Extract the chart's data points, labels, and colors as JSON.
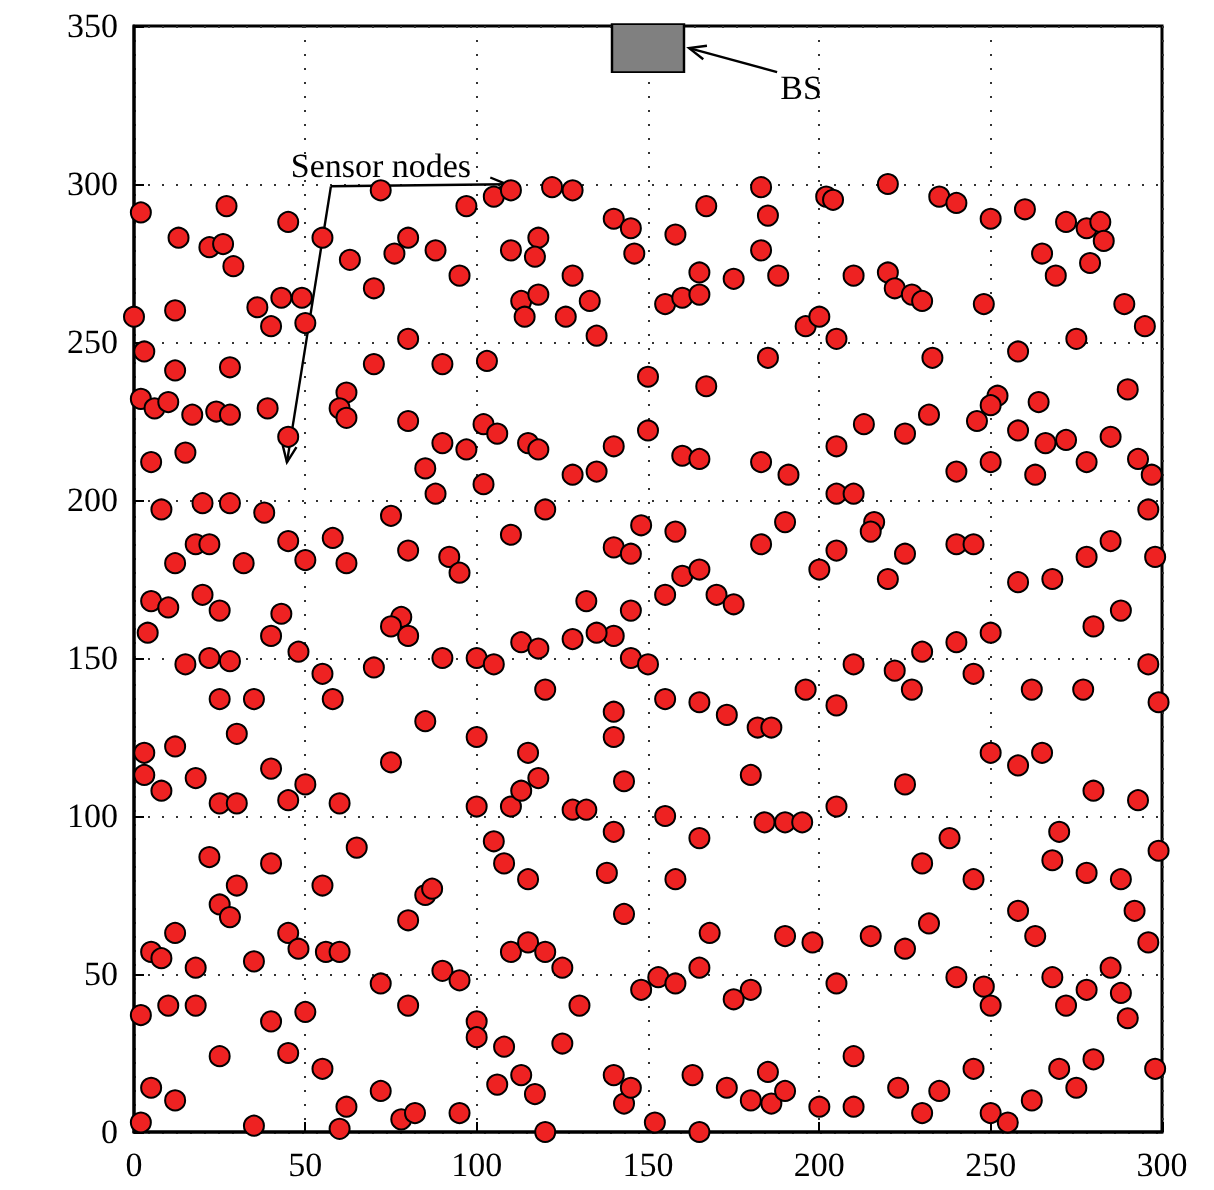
{
  "chart_data": {
    "type": "scatter",
    "xlim": [
      0,
      300
    ],
    "ylim": [
      0,
      350
    ],
    "xticks": [
      0,
      50,
      100,
      150,
      200,
      250,
      300
    ],
    "yticks": [
      0,
      50,
      100,
      150,
      200,
      250,
      300,
      350
    ],
    "grid": true,
    "marker": "circle",
    "annotations": [
      {
        "text": "Sensor nodes",
        "x": 110,
        "y": 298
      },
      {
        "text": "BS",
        "x": 162,
        "y": 343
      }
    ],
    "series": [
      {
        "color": "#ee2222",
        "x": [
          2,
          27,
          45,
          55,
          72,
          80,
          97,
          105,
          110,
          122,
          128,
          140,
          145,
          158,
          167,
          183,
          185,
          202,
          204,
          220,
          235,
          240,
          250,
          260,
          272,
          278,
          282,
          13,
          22,
          118,
          0,
          12,
          26,
          29,
          36,
          43,
          49,
          63,
          70,
          76,
          88,
          95,
          110,
          117,
          128,
          133,
          146,
          155,
          165,
          175,
          183,
          188,
          210,
          220,
          222,
          227,
          230,
          248,
          265,
          269,
          279,
          283,
          289,
          295,
          113,
          118,
          126,
          160,
          165,
          196,
          200,
          3,
          12,
          28,
          40,
          50,
          62,
          70,
          80,
          90,
          103,
          114,
          135,
          150,
          167,
          185,
          205,
          233,
          258,
          275,
          264,
          252,
          290,
          2,
          6,
          10,
          17,
          24,
          28,
          39,
          45,
          60,
          62,
          80,
          90,
          97,
          102,
          106,
          115,
          118,
          128,
          135,
          140,
          150,
          160,
          165,
          183,
          191,
          205,
          213,
          225,
          232,
          246,
          250,
          258,
          266,
          272,
          278,
          285,
          293,
          297,
          5,
          15,
          20,
          85,
          88,
          102,
          205,
          210,
          216,
          240,
          250,
          263,
          8,
          18,
          28,
          22,
          32,
          38,
          45,
          50,
          58,
          62,
          75,
          80,
          92,
          110,
          120,
          140,
          145,
          148,
          158,
          160,
          165,
          170,
          175,
          183,
          190,
          205,
          215,
          225,
          240,
          245,
          258,
          268,
          278,
          285,
          296,
          5,
          10,
          20,
          25,
          12,
          43,
          78,
          95,
          132,
          145,
          140,
          155,
          200,
          220,
          250,
          280,
          288,
          298,
          4,
          15,
          22,
          28,
          40,
          48,
          55,
          58,
          70,
          75,
          80,
          90,
          100,
          105,
          113,
          118,
          128,
          135,
          145,
          150,
          155,
          165,
          173,
          182,
          186,
          196,
          205,
          210,
          222,
          227,
          230,
          240,
          245,
          262,
          277,
          296,
          299,
          3,
          12,
          30,
          35,
          25,
          85,
          100,
          115,
          140,
          140,
          120,
          250,
          265,
          3,
          8,
          18,
          25,
          30,
          40,
          45,
          50,
          60,
          75,
          100,
          110,
          113,
          118,
          128,
          132,
          143,
          165,
          180,
          184,
          190,
          205,
          225,
          238,
          258,
          270,
          280,
          293,
          299,
          22,
          30,
          40,
          55,
          65,
          85,
          87,
          105,
          108,
          115,
          138,
          140,
          155,
          158,
          195,
          230,
          245,
          268,
          278,
          288,
          5,
          8,
          12,
          18,
          25,
          28,
          35,
          45,
          48,
          56,
          60,
          72,
          80,
          90,
          95,
          110,
          115,
          120,
          125,
          143,
          148,
          153,
          158,
          165,
          168,
          180,
          190,
          198,
          205,
          215,
          225,
          232,
          240,
          248,
          258,
          263,
          268,
          278,
          285,
          292,
          296,
          2,
          10,
          18,
          40,
          50,
          80,
          100,
          130,
          175,
          250,
          272,
          288,
          2,
          5,
          12,
          25,
          35,
          45,
          55,
          62,
          72,
          78,
          82,
          95,
          106,
          108,
          113,
          117,
          125,
          140,
          143,
          145,
          163,
          173,
          180,
          186,
          190,
          200,
          210,
          223,
          230,
          235,
          245,
          250,
          262,
          270,
          275,
          280,
          290,
          298,
          165,
          120,
          60,
          100,
          210,
          255,
          152,
          185
        ],
        "values": [
          291,
          293,
          288,
          283,
          298,
          283,
          293,
          296,
          298,
          299,
          298,
          289,
          286,
          284,
          293,
          299,
          290,
          296,
          295,
          300,
          296,
          294,
          289,
          292,
          288,
          286,
          288,
          283,
          280,
          283,
          258,
          260,
          281,
          274,
          261,
          264,
          264,
          276,
          267,
          278,
          279,
          271,
          279,
          277,
          271,
          263,
          278,
          262,
          272,
          270,
          279,
          271,
          271,
          272,
          267,
          265,
          263,
          262,
          278,
          271,
          275,
          282,
          262,
          255,
          263,
          265,
          258,
          264,
          265,
          255,
          258,
          247,
          241,
          242,
          255,
          256,
          234,
          243,
          251,
          243,
          244,
          258,
          252,
          239,
          236,
          245,
          251,
          245,
          247,
          251,
          231,
          233,
          235,
          232,
          229,
          231,
          227,
          228,
          227,
          229,
          220,
          229,
          226,
          225,
          218,
          216,
          224,
          221,
          218,
          216,
          208,
          209,
          217,
          222,
          214,
          213,
          212,
          208,
          217,
          224,
          221,
          227,
          225,
          230,
          222,
          218,
          219,
          212,
          220,
          213,
          208,
          212,
          215,
          199,
          210,
          202,
          205,
          202,
          202,
          193,
          209,
          212,
          208,
          197,
          186,
          199,
          186,
          180,
          196,
          187,
          181,
          188,
          180,
          195,
          184,
          182,
          189,
          197,
          185,
          183,
          192,
          190,
          176,
          178,
          170,
          167,
          186,
          193,
          184,
          190,
          183,
          186,
          186,
          174,
          175,
          182,
          187,
          197,
          168,
          166,
          170,
          165,
          180,
          164,
          163,
          177,
          168,
          165,
          157,
          170,
          178,
          175,
          158,
          160,
          165,
          182,
          158,
          148,
          150,
          149,
          157,
          152,
          145,
          137,
          147,
          160,
          157,
          150,
          150,
          148,
          155,
          153,
          156,
          158,
          150,
          148,
          137,
          136,
          132,
          128,
          128,
          140,
          135,
          148,
          146,
          140,
          152,
          155,
          145,
          140,
          140,
          148,
          136,
          120,
          122,
          126,
          137,
          137,
          130,
          125,
          120,
          125,
          133,
          140,
          120,
          120,
          113,
          108,
          112,
          104,
          104,
          115,
          105,
          110,
          104,
          117,
          103,
          103,
          108,
          112,
          102,
          102,
          111,
          93,
          113,
          98,
          98,
          103,
          110,
          93,
          116,
          95,
          108,
          105,
          89,
          87,
          78,
          85,
          78,
          90,
          75,
          77,
          92,
          85,
          80,
          82,
          95,
          100,
          80,
          98,
          85,
          80,
          86,
          82,
          80,
          57,
          55,
          63,
          52,
          72,
          68,
          54,
          63,
          58,
          57,
          57,
          47,
          67,
          51,
          48,
          57,
          60,
          57,
          52,
          69,
          45,
          49,
          47,
          52,
          63,
          45,
          62,
          60,
          47,
          62,
          58,
          66,
          49,
          46,
          70,
          62,
          49,
          45,
          52,
          70,
          60,
          37,
          40,
          40,
          35,
          38,
          40,
          35,
          40,
          42,
          40,
          40,
          44,
          3,
          14,
          10,
          24,
          2,
          25,
          20,
          8,
          13,
          4,
          6,
          6,
          15,
          27,
          18,
          12,
          28,
          18,
          9,
          14,
          18,
          14,
          10,
          9,
          13,
          8,
          24,
          14,
          6,
          13,
          20,
          6,
          10,
          20,
          14,
          23,
          36,
          20,
          0,
          0,
          1,
          30,
          8,
          3,
          3,
          19
        ]
      },
      {
        "color": "#808080",
        "marker": "square",
        "x": [
          150
        ],
        "values": [
          343
        ]
      }
    ]
  }
}
